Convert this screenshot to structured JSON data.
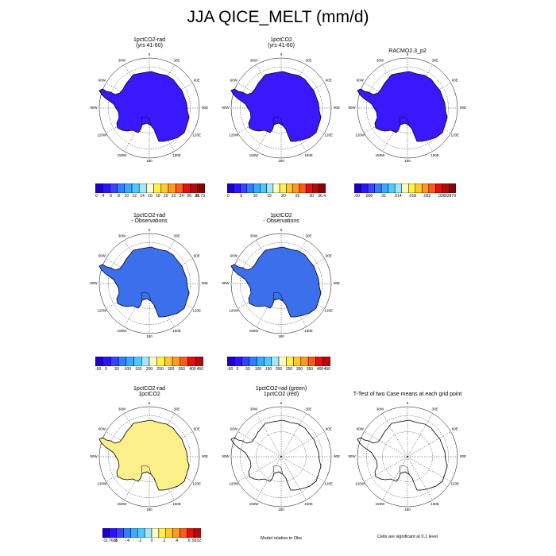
{
  "title": "JJA QICE_MELT (mm/d)",
  "colors": {
    "dark_blue": "#3a18ff",
    "mid_blue": "#3c6fec",
    "yellow": "#fbef8a",
    "outline": "#000000",
    "grid": "#000000"
  },
  "grid_labels": {
    "top": "0",
    "bottom": "180",
    "left": "90W",
    "right": "90E",
    "ring": [
      "30E",
      "60E",
      "120E",
      "150E",
      "150W",
      "120W",
      "60W",
      "30W"
    ]
  },
  "panels": [
    {
      "title": [
        "1pctCO2-rad",
        "(yrs 41-60)"
      ],
      "fill": "dark_blue",
      "colorbar": 0
    },
    {
      "title": [
        "1pctCO2",
        "(yrs 41-60)"
      ],
      "fill": "dark_blue",
      "colorbar": 1
    },
    {
      "title": [
        "RACMO2.3_p2"
      ],
      "fill": "dark_blue",
      "colorbar": 2
    },
    {
      "title": [
        "1pctCO2-rad",
        "- Observations"
      ],
      "fill": "mid_blue",
      "colorbar": 3
    },
    {
      "title": [
        "1pctCO2",
        "- Observations"
      ],
      "fill": "mid_blue",
      "colorbar": 4
    },
    {
      "title": [
        "1pctCO2-rad",
        "1pctCO2"
      ],
      "fill": "yellow",
      "colorbar": 5
    },
    {
      "title": [
        "1pctCO2-rad (green)",
        "1pctCO2 (red)"
      ],
      "fill": "none",
      "colorbar": null
    },
    {
      "title": [
        "T-Test of two Case means at each grid point"
      ],
      "fill": "none",
      "colorbar": null
    }
  ],
  "colorbars": [
    {
      "colors": [
        "#1b00c8",
        "#2e13ff",
        "#3b41ff",
        "#2f7fff",
        "#3aa9ff",
        "#4fc8ff",
        "#a4e5ff",
        "#fffbc4",
        "#fff04a",
        "#ffc830",
        "#ff9a1f",
        "#ff5a16",
        "#e4100f",
        "#b20a0a",
        "#880505"
      ],
      "labels": [
        "0",
        "4",
        "6",
        "8",
        "10",
        "12",
        "14",
        "16",
        "18",
        "20",
        "22",
        "24",
        "26",
        "28",
        "31.73"
      ]
    },
    {
      "colors": [
        "#1b00c8",
        "#2e13ff",
        "#3b41ff",
        "#2f7fff",
        "#3aa9ff",
        "#4fc8ff",
        "#a4e5ff",
        "#fffbc4",
        "#fff04a",
        "#ffc830",
        "#ff9a1f",
        "#ff5a16",
        "#e4100f",
        "#b20a0a",
        "#880505"
      ],
      "labels": [
        "0",
        "5",
        "10",
        "15",
        "20",
        "25",
        "30",
        "36.4"
      ]
    },
    {
      "colors": [
        "#1b00c8",
        "#2e13ff",
        "#3b41ff",
        "#2f7fff",
        "#3aa9ff",
        "#4fc8ff",
        "#a4e5ff",
        "#fffbc4",
        "#fff04a",
        "#ffc830",
        "#ff9a1f",
        "#ff5a16",
        "#e4100f",
        "#b20a0a",
        "#880505"
      ],
      "labels": [
        ".00",
        ".006",
        ".01",
        ".014",
        ".018",
        ".022",
        ".026",
        ".02879"
      ]
    },
    {
      "colors": [
        "#1b00c8",
        "#2e13ff",
        "#3b41ff",
        "#2f7fff",
        "#3aa9ff",
        "#4fc8ff",
        "#a4e5ff",
        "#fffbc4",
        "#fff04a",
        "#ffc830",
        "#ff9a1f",
        "#ff5a16",
        "#e4100f",
        "#b20a0a"
      ],
      "labels": [
        "-50",
        "0",
        "50",
        "100",
        "150",
        "200",
        "250",
        "300",
        "350",
        "400",
        "450"
      ]
    },
    {
      "colors": [
        "#1b00c8",
        "#2e13ff",
        "#3b41ff",
        "#2f7fff",
        "#3aa9ff",
        "#4fc8ff",
        "#a4e5ff",
        "#fffbc4",
        "#fff04a",
        "#ffc830",
        "#ff9a1f",
        "#ff5a16",
        "#e4100f",
        "#b20a0a"
      ],
      "labels": [
        "-50",
        "0",
        "50",
        "100",
        "150",
        "200",
        "250",
        "300",
        "350",
        "400",
        "450"
      ]
    },
    {
      "colors": [
        "#1b00c8",
        "#2e13ff",
        "#3b41ff",
        "#2f7fff",
        "#3aa9ff",
        "#4fc8ff",
        "#a4e5ff",
        "#fffbc4",
        "#fff04a",
        "#ffc830",
        "#ff9a1f",
        "#ff5a16",
        "#e4100f",
        "#b20a0a"
      ],
      "labels": [
        "-11.7635",
        "-.6",
        "-.4",
        "-.2",
        "0",
        ".2",
        ".4",
        ".6",
        ".9332"
      ]
    }
  ],
  "footnotes": {
    "model_relative": "Model relative to Obs",
    "significance": "Cells are significant at 0.1 level"
  },
  "chart_data": {
    "type": "heatmap",
    "projection": "south-polar-stereographic",
    "title": "JJA QICE_MELT (mm/d)",
    "panels": [
      {
        "title": "1pctCO2-rad (yrs 41-60)",
        "field_level": "low (near 0)",
        "colorbar_min": "0",
        "colorbar_max": "31.73"
      },
      {
        "title": "1pctCO2 (yrs 41-60)",
        "field_level": "low (near 0)",
        "colorbar_min": "0",
        "colorbar_max": "36.4"
      },
      {
        "title": "RACMO2.3_p2",
        "field_level": "low (near 0)",
        "colorbar_min": ".00",
        "colorbar_max": ".02879"
      },
      {
        "title": "1pctCO2-rad - Observations",
        "field_level": "near 0",
        "colorbar_min": "-50",
        "colorbar_max": "450"
      },
      {
        "title": "1pctCO2 - Observations",
        "field_level": "near 0",
        "colorbar_min": "-50",
        "colorbar_max": "450"
      },
      {
        "title": "1pctCO2-rad 1pctCO2",
        "field_level": "near 0 (slightly positive)",
        "colorbar_min": "-11.7635",
        "colorbar_max": ".9332"
      },
      {
        "title": "1pctCO2-rad (green) 1pctCO2 (red)",
        "field_level": "outline only"
      },
      {
        "title": "T-Test of two Case means at each grid point",
        "field_level": "outline only"
      }
    ]
  }
}
